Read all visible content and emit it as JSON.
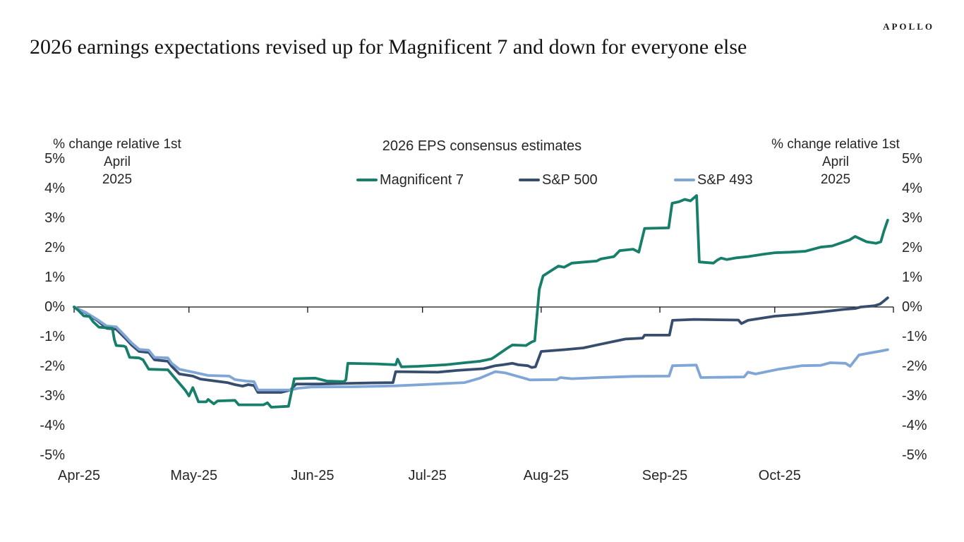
{
  "logo": "APOLLO",
  "page_title": "2026 earnings expectations revised up for Magnificent 7 and down for everyone else",
  "chart_data": {
    "type": "line",
    "title": "2026 EPS consensus estimates",
    "y_axis_title": [
      "% change relative 1st April",
      "2025"
    ],
    "y_unit": "%",
    "ylim": [
      -5,
      5
    ],
    "grid": "off",
    "legend_position": "top",
    "y_ticks": [
      {
        "label": "5%",
        "value": 5
      },
      {
        "label": "4%",
        "value": 4
      },
      {
        "label": "3%",
        "value": 3
      },
      {
        "label": "2%",
        "value": 2
      },
      {
        "label": "1%",
        "value": 1
      },
      {
        "label": "0%",
        "value": 0
      },
      {
        "label": "-1%",
        "value": -1
      },
      {
        "label": "-2%",
        "value": -2
      },
      {
        "label": "-3%",
        "value": -3
      },
      {
        "label": "-4%",
        "value": -4
      },
      {
        "label": "-5%",
        "value": -5
      }
    ],
    "x_ticks": [
      {
        "label": "Apr-25",
        "day": 0
      },
      {
        "label": "May-25",
        "day": 30
      },
      {
        "label": "Jun-25",
        "day": 61
      },
      {
        "label": "Jul-25",
        "day": 91
      },
      {
        "label": "Aug-25",
        "day": 122
      },
      {
        "label": "Sep-25",
        "day": 153
      },
      {
        "label": "Oct-25",
        "day": 183
      }
    ],
    "x_axis_end_day": 214,
    "series": [
      {
        "name": "S&P 500",
        "color": "#374D6E",
        "points": [
          [
            0,
            0
          ],
          [
            3,
            -0.2
          ],
          [
            6,
            -0.45
          ],
          [
            8.5,
            -0.72
          ],
          [
            11,
            -0.75
          ],
          [
            13.5,
            -1.07
          ],
          [
            15,
            -1.28
          ],
          [
            17,
            -1.5
          ],
          [
            19.5,
            -1.53
          ],
          [
            21,
            -1.78
          ],
          [
            24.5,
            -1.83
          ],
          [
            25.5,
            -2.0
          ],
          [
            27.5,
            -2.26
          ],
          [
            31,
            -2.33
          ],
          [
            33,
            -2.43
          ],
          [
            37,
            -2.5
          ],
          [
            40,
            -2.55
          ],
          [
            42,
            -2.62
          ],
          [
            44,
            -2.67
          ],
          [
            45.5,
            -2.62
          ],
          [
            47,
            -2.65
          ],
          [
            48,
            -2.88
          ],
          [
            54,
            -2.88
          ],
          [
            56.5,
            -2.8
          ],
          [
            58,
            -2.6
          ],
          [
            64,
            -2.6
          ],
          [
            70,
            -2.58
          ],
          [
            78,
            -2.56
          ],
          [
            83.3,
            -2.55
          ],
          [
            84,
            -2.18
          ],
          [
            95,
            -2.2
          ],
          [
            100,
            -2.14
          ],
          [
            107,
            -2.08
          ],
          [
            110,
            -1.98
          ],
          [
            112,
            -1.95
          ],
          [
            114.5,
            -1.9
          ],
          [
            116,
            -1.95
          ],
          [
            118.5,
            -1.98
          ],
          [
            119.5,
            -2.04
          ],
          [
            120.5,
            -2.02
          ],
          [
            122,
            -1.5
          ],
          [
            128,
            -1.44
          ],
          [
            133,
            -1.38
          ],
          [
            137,
            -1.27
          ],
          [
            144,
            -1.08
          ],
          [
            148.5,
            -1.05
          ],
          [
            149,
            -0.95
          ],
          [
            155.5,
            -0.95
          ],
          [
            156.3,
            -0.45
          ],
          [
            162,
            -0.42
          ],
          [
            168,
            -0.43
          ],
          [
            173.5,
            -0.44
          ],
          [
            174.3,
            -0.56
          ],
          [
            176,
            -0.45
          ],
          [
            183,
            -0.31
          ],
          [
            189,
            -0.25
          ],
          [
            195,
            -0.17
          ],
          [
            201,
            -0.08
          ],
          [
            204,
            -0.05
          ],
          [
            205.5,
            0.0
          ],
          [
            209,
            0.04
          ],
          [
            210.5,
            0.1
          ],
          [
            211.5,
            0.2
          ],
          [
            212.5,
            0.31
          ]
        ]
      },
      {
        "name": "S&P 493",
        "color": "#7FA6D6",
        "points": [
          [
            0,
            0
          ],
          [
            3,
            -0.18
          ],
          [
            6,
            -0.42
          ],
          [
            8.5,
            -0.64
          ],
          [
            11,
            -0.67
          ],
          [
            13.5,
            -1.0
          ],
          [
            15,
            -1.21
          ],
          [
            17,
            -1.43
          ],
          [
            19.5,
            -1.46
          ],
          [
            21,
            -1.7
          ],
          [
            24.5,
            -1.72
          ],
          [
            25.5,
            -1.9
          ],
          [
            27.5,
            -2.1
          ],
          [
            31.5,
            -2.21
          ],
          [
            35,
            -2.31
          ],
          [
            40.5,
            -2.33
          ],
          [
            42,
            -2.45
          ],
          [
            45,
            -2.5
          ],
          [
            47,
            -2.52
          ],
          [
            48,
            -2.8
          ],
          [
            56.5,
            -2.8
          ],
          [
            58.5,
            -2.74
          ],
          [
            62,
            -2.7
          ],
          [
            73,
            -2.69
          ],
          [
            84,
            -2.66
          ],
          [
            91,
            -2.62
          ],
          [
            102,
            -2.55
          ],
          [
            106,
            -2.4
          ],
          [
            110,
            -2.18
          ],
          [
            112.5,
            -2.22
          ],
          [
            118,
            -2.42
          ],
          [
            119,
            -2.46
          ],
          [
            126,
            -2.45
          ],
          [
            127,
            -2.38
          ],
          [
            130,
            -2.42
          ],
          [
            137,
            -2.38
          ],
          [
            146,
            -2.34
          ],
          [
            155.4,
            -2.33
          ],
          [
            156.3,
            -1.98
          ],
          [
            162.5,
            -1.96
          ],
          [
            163.7,
            -2.38
          ],
          [
            175,
            -2.36
          ],
          [
            176,
            -2.2
          ],
          [
            178,
            -2.26
          ],
          [
            184,
            -2.1
          ],
          [
            190,
            -1.98
          ],
          [
            195,
            -1.97
          ],
          [
            197.5,
            -1.88
          ],
          [
            201.5,
            -1.9
          ],
          [
            202.7,
            -2.0
          ],
          [
            205,
            -1.62
          ],
          [
            207.5,
            -1.56
          ],
          [
            210.5,
            -1.49
          ],
          [
            212.5,
            -1.44
          ]
        ]
      },
      {
        "name": "Magnificent 7",
        "color": "#177E6A",
        "points": [
          [
            0,
            0
          ],
          [
            1,
            -0.1
          ],
          [
            2.5,
            -0.3
          ],
          [
            4,
            -0.32
          ],
          [
            5,
            -0.5
          ],
          [
            6.5,
            -0.68
          ],
          [
            10,
            -0.72
          ],
          [
            10.5,
            -1.1
          ],
          [
            11,
            -1.3
          ],
          [
            13,
            -1.32
          ],
          [
            13.5,
            -1.35
          ],
          [
            14.5,
            -1.7
          ],
          [
            17,
            -1.72
          ],
          [
            18,
            -1.78
          ],
          [
            19.5,
            -2.1
          ],
          [
            24.5,
            -2.12
          ],
          [
            27,
            -2.5
          ],
          [
            29,
            -2.8
          ],
          [
            30,
            -3.0
          ],
          [
            31,
            -2.72
          ],
          [
            32.5,
            -3.2
          ],
          [
            34.5,
            -3.2
          ],
          [
            35,
            -3.12
          ],
          [
            36.5,
            -3.27
          ],
          [
            37.5,
            -3.17
          ],
          [
            42,
            -3.15
          ],
          [
            43,
            -3.3
          ],
          [
            49.5,
            -3.3
          ],
          [
            50.5,
            -3.23
          ],
          [
            51.5,
            -3.38
          ],
          [
            56,
            -3.35
          ],
          [
            57.5,
            -2.42
          ],
          [
            63,
            -2.4
          ],
          [
            66,
            -2.5
          ],
          [
            70.5,
            -2.52
          ],
          [
            71,
            -2.45
          ],
          [
            71.5,
            -1.9
          ],
          [
            79,
            -1.92
          ],
          [
            84,
            -1.95
          ],
          [
            84.5,
            -1.76
          ],
          [
            85.5,
            -2.02
          ],
          [
            90,
            -2.0
          ],
          [
            97,
            -1.95
          ],
          [
            102,
            -1.88
          ],
          [
            106,
            -1.83
          ],
          [
            109,
            -1.75
          ],
          [
            110,
            -1.67
          ],
          [
            113,
            -1.4
          ],
          [
            114.5,
            -1.28
          ],
          [
            118,
            -1.3
          ],
          [
            119.5,
            -1.18
          ],
          [
            120.3,
            -1.14
          ],
          [
            121.5,
            0.6
          ],
          [
            122.5,
            1.05
          ],
          [
            125,
            1.26
          ],
          [
            126.5,
            1.38
          ],
          [
            128,
            1.34
          ],
          [
            130,
            1.48
          ],
          [
            133.5,
            1.52
          ],
          [
            136.5,
            1.55
          ],
          [
            137.5,
            1.62
          ],
          [
            141,
            1.7
          ],
          [
            142.5,
            1.9
          ],
          [
            146,
            1.95
          ],
          [
            147.5,
            1.85
          ],
          [
            149,
            2.65
          ],
          [
            155.3,
            2.67
          ],
          [
            156.2,
            3.5
          ],
          [
            158,
            3.55
          ],
          [
            159.5,
            3.63
          ],
          [
            161,
            3.58
          ],
          [
            162.6,
            3.76
          ],
          [
            163.3,
            1.52
          ],
          [
            167,
            1.48
          ],
          [
            168,
            1.58
          ],
          [
            169,
            1.65
          ],
          [
            170.5,
            1.6
          ],
          [
            173,
            1.66
          ],
          [
            176,
            1.7
          ],
          [
            180,
            1.78
          ],
          [
            183,
            1.83
          ],
          [
            187,
            1.85
          ],
          [
            191,
            1.88
          ],
          [
            195,
            2.02
          ],
          [
            198,
            2.06
          ],
          [
            202.5,
            2.26
          ],
          [
            204,
            2.38
          ],
          [
            207,
            2.2
          ],
          [
            209.5,
            2.15
          ],
          [
            210.7,
            2.2
          ],
          [
            211.5,
            2.55
          ],
          [
            212.5,
            2.93
          ]
        ]
      }
    ],
    "legend_order": [
      "Magnificent 7",
      "S&P 500",
      "S&P 493"
    ]
  }
}
